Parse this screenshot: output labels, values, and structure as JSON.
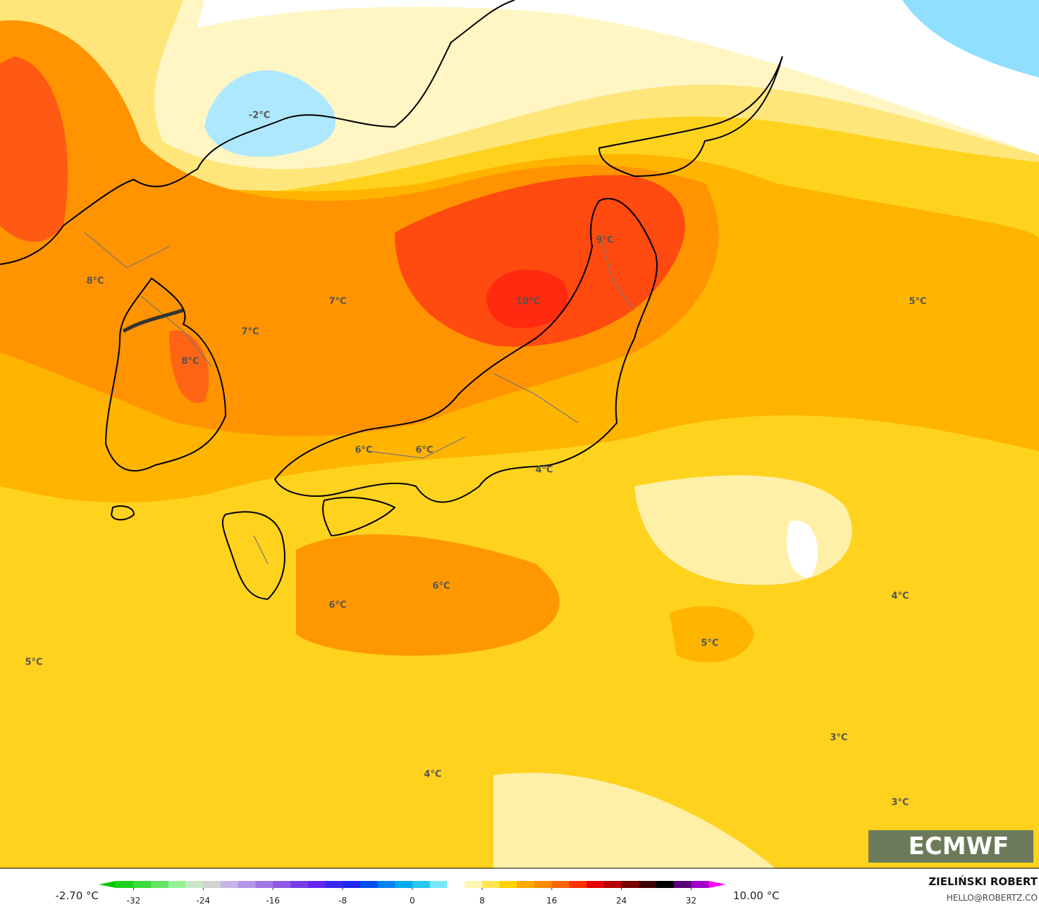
{
  "map": {
    "labels": [
      "-2°C",
      "9°C",
      "8°C",
      "7°C",
      "10°C",
      "7°C",
      "8°C",
      "5°C",
      "6°C",
      "6°C",
      "4°C",
      "6°C",
      "6°C",
      "5°C",
      "4°C",
      "5°C",
      "3°C",
      "4°C",
      "3°C"
    ],
    "logo": "ECMWF"
  },
  "colorbar": {
    "min_label": "-2.70 °C",
    "max_label": "10.00 °C",
    "ticks": [
      -32,
      -24,
      -16,
      -8,
      0,
      8,
      16,
      24,
      32
    ],
    "lim": [
      -36,
      36
    ],
    "colors": [
      "#00c800",
      "#1ed21e",
      "#3cdc3c",
      "#64e664",
      "#96f096",
      "#c8e6c8",
      "#d2d2d2",
      "#c8b4e6",
      "#b496e6",
      "#a078e6",
      "#8c5ae6",
      "#783ce6",
      "#6428f0",
      "#3c28f0",
      "#1e28f0",
      "#0050f0",
      "#0082f0",
      "#00aaf0",
      "#28c8f0",
      "#78e6f8",
      "#ffffff",
      "#fff5b4",
      "#ffe650",
      "#ffd200",
      "#ffaa00",
      "#ff8c00",
      "#ff6400",
      "#ff3200",
      "#e60000",
      "#b40000",
      "#780000",
      "#3c0000",
      "#000000",
      "#5a0078",
      "#a000c8",
      "#ff00ff"
    ]
  },
  "credit": {
    "author": "ZIELIŃSKI ROBERT",
    "email": "HELLO@ROBERTZ.CO"
  }
}
